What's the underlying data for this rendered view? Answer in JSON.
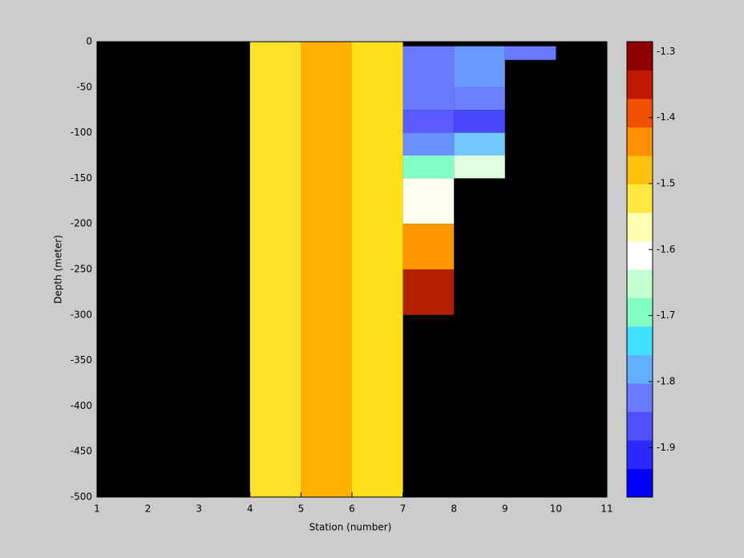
{
  "chart_data": {
    "type": "heatmap",
    "xlabel": "Station (number)",
    "ylabel": "Depth (meter)",
    "xlim": [
      1,
      11
    ],
    "xticks": [
      1,
      2,
      3,
      4,
      5,
      6,
      7,
      8,
      9,
      10,
      11
    ],
    "ylim": [
      -500,
      0
    ],
    "yticks": [
      0,
      -50,
      -100,
      -150,
      -200,
      -250,
      -300,
      -350,
      -400,
      -450,
      -500
    ],
    "background": "#000000",
    "cells": [
      {
        "x0": 4,
        "x1": 5,
        "y0": 0,
        "y1": -500,
        "value": -1.48,
        "color": "#fde12a"
      },
      {
        "x0": 5,
        "x1": 6,
        "y0": 0,
        "y1": -500,
        "value": -1.42,
        "color": "#ffb000"
      },
      {
        "x0": 6,
        "x1": 7,
        "y0": 0,
        "y1": -500,
        "value": -1.48,
        "color": "#ffe018"
      },
      {
        "x0": 7,
        "x1": 8,
        "y0": -5,
        "y1": -75,
        "value": -1.88,
        "color": "#6a7aff"
      },
      {
        "x0": 7,
        "x1": 8,
        "y0": -75,
        "y1": -100,
        "value": -1.92,
        "color": "#5a5aff"
      },
      {
        "x0": 7,
        "x1": 8,
        "y0": -100,
        "y1": -125,
        "value": -1.86,
        "color": "#6a90ff"
      },
      {
        "x0": 7,
        "x1": 8,
        "y0": -125,
        "y1": -150,
        "value": -1.76,
        "color": "#80ffc8"
      },
      {
        "x0": 7,
        "x1": 8,
        "y0": -150,
        "y1": -200,
        "value": -1.62,
        "color": "#fdfff0"
      },
      {
        "x0": 7,
        "x1": 8,
        "y0": -200,
        "y1": -250,
        "value": -1.4,
        "color": "#ff9800"
      },
      {
        "x0": 7,
        "x1": 8,
        "y0": -250,
        "y1": -300,
        "value": -1.3,
        "color": "#b02000"
      },
      {
        "x0": 8,
        "x1": 9,
        "y0": -5,
        "y1": -50,
        "value": -1.85,
        "color": "#6a9aff"
      },
      {
        "x0": 8,
        "x1": 9,
        "y0": -50,
        "y1": -75,
        "value": -1.88,
        "color": "#6a80ff"
      },
      {
        "x0": 8,
        "x1": 9,
        "y0": -75,
        "y1": -100,
        "value": -1.93,
        "color": "#4848ff"
      },
      {
        "x0": 8,
        "x1": 9,
        "y0": -100,
        "y1": -125,
        "value": -1.82,
        "color": "#70c8ff"
      },
      {
        "x0": 8,
        "x1": 9,
        "y0": -125,
        "y1": -150,
        "value": -1.66,
        "color": "#e0ffe0"
      },
      {
        "x0": 9,
        "x1": 10,
        "y0": -5,
        "y1": -20,
        "value": -1.88,
        "color": "#6a7aff"
      }
    ],
    "clim": [
      -1.975,
      -1.285
    ],
    "cticks": [
      -1.3,
      -1.4,
      -1.5,
      -1.6,
      -1.7,
      -1.8,
      -1.9
    ],
    "colormap": [
      "#0000ff",
      "#2a2aff",
      "#5050ff",
      "#6a7aff",
      "#60b0ff",
      "#40e0ff",
      "#80ffc0",
      "#c0ffd0",
      "#ffffff",
      "#ffffb0",
      "#ffe840",
      "#ffc010",
      "#ff9000",
      "#f05000",
      "#c01800",
      "#900000"
    ]
  }
}
